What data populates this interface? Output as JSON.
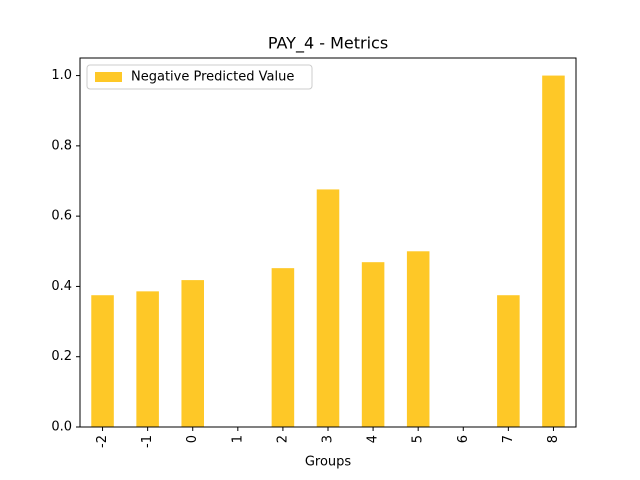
{
  "chart_data": {
    "type": "bar",
    "title": "PAY_4 - Metrics",
    "xlabel": "Groups",
    "categories": [
      "-2",
      "-1",
      "0",
      "1",
      "2",
      "3",
      "4",
      "5",
      "6",
      "7",
      "8"
    ],
    "series": [
      {
        "name": "Negative Predicted Value",
        "color": "#fec827",
        "values": [
          0.375,
          0.386,
          0.418,
          0,
          0.452,
          0.676,
          0.469,
          0.5,
          0,
          0.375,
          1.0
        ]
      }
    ],
    "ylim": [
      0,
      1.05
    ],
    "yticks": [
      {
        "value": 0,
        "label": "0.0"
      },
      {
        "value": 0.2,
        "label": "0.2"
      },
      {
        "value": 0.4,
        "label": "0.4"
      },
      {
        "value": 0.6,
        "label": "0.6"
      },
      {
        "value": 0.8,
        "label": "0.8"
      },
      {
        "value": 1.0,
        "label": "1.0"
      }
    ],
    "legend": "upper left",
    "grid": false
  }
}
